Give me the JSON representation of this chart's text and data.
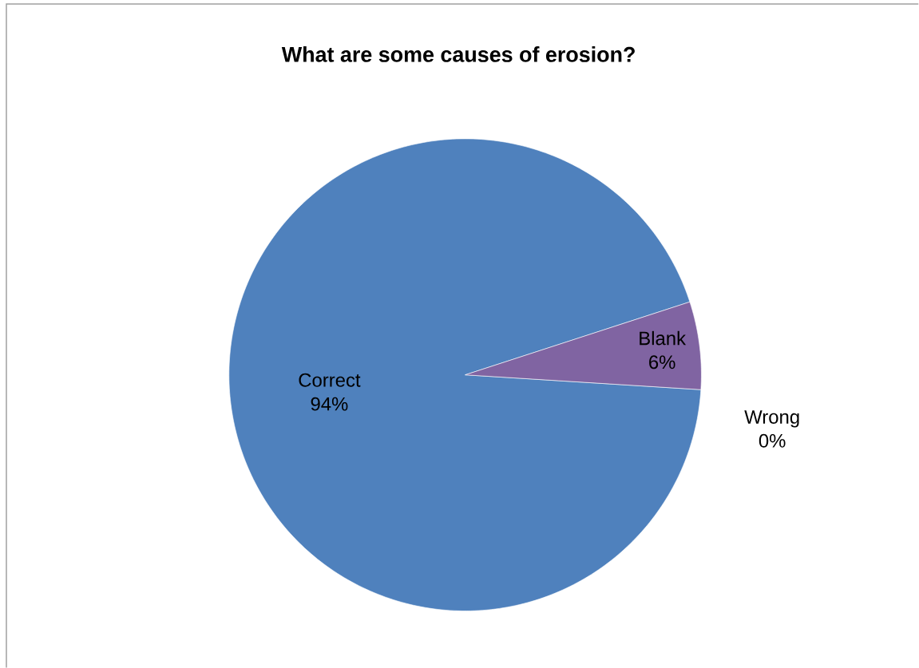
{
  "chart_data": {
    "type": "pie",
    "title": "What are some causes of erosion?",
    "categories": [
      "Correct",
      "Blank",
      "Wrong"
    ],
    "values": [
      94,
      6,
      0
    ],
    "value_labels": [
      "94%",
      "6%",
      "0%"
    ],
    "colors": [
      "#4f81bd",
      "#8064a2",
      "#9bbb59"
    ]
  }
}
